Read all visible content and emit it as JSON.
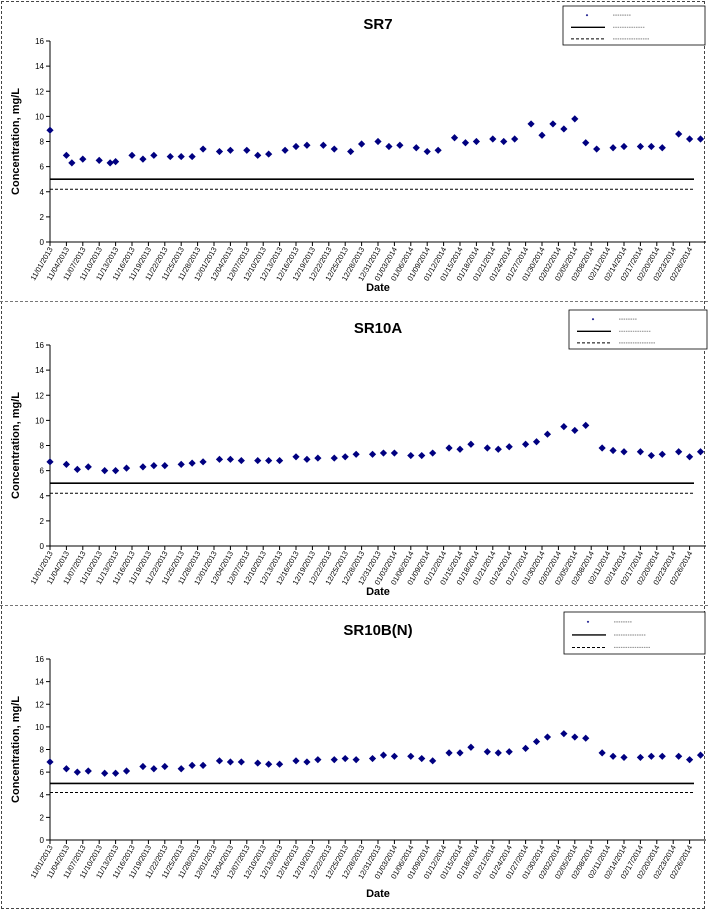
{
  "chart_data": [
    {
      "type": "scatter",
      "title": "SR7",
      "xlabel": "Date",
      "ylabel": "Concentration, mg/L",
      "ylim": [
        0,
        16
      ],
      "yticks": [
        0,
        2,
        4,
        6,
        8,
        10,
        12,
        14,
        16
      ],
      "xticklabels": [
        "11/01/2013",
        "11/04/2013",
        "11/07/2013",
        "11/10/2013",
        "11/13/2013",
        "11/16/2013",
        "11/19/2013",
        "11/22/2013",
        "11/25/2013",
        "11/28/2013",
        "12/01/2013",
        "12/04/2013",
        "12/07/2013",
        "12/10/2013",
        "12/13/2013",
        "12/16/2013",
        "12/19/2013",
        "12/22/2013",
        "12/25/2013",
        "12/28/2013",
        "12/31/2013",
        "01/03/2014",
        "01/06/2014",
        "01/09/2014",
        "01/12/2014",
        "01/15/2014",
        "01/18/2014",
        "01/21/2014",
        "01/24/2014",
        "01/27/2014",
        "01/30/2014",
        "02/02/2014",
        "02/05/2014",
        "02/08/2014",
        "02/11/2014",
        "02/14/2014",
        "02/17/2014",
        "02/20/2014",
        "02/23/2014",
        "02/26/2014"
      ],
      "dates": [
        "11/01/2013",
        "11/04/2013",
        "11/05/2013",
        "11/07/2013",
        "11/10/2013",
        "11/12/2013",
        "11/13/2013",
        "11/16/2013",
        "11/18/2013",
        "11/20/2013",
        "11/23/2013",
        "11/25/2013",
        "11/27/2013",
        "11/29/2013",
        "12/02/2013",
        "12/04/2013",
        "12/07/2013",
        "12/09/2013",
        "12/11/2013",
        "12/14/2013",
        "12/16/2013",
        "12/18/2013",
        "12/21/2013",
        "12/23/2013",
        "12/26/2013",
        "12/28/2013",
        "12/31/2013",
        "01/02/2014",
        "01/04/2014",
        "01/07/2014",
        "01/09/2014",
        "01/11/2014",
        "01/14/2014",
        "01/16/2014",
        "01/18/2014",
        "01/21/2014",
        "01/23/2014",
        "01/25/2014",
        "01/28/2014",
        "01/30/2014",
        "02/01/2014",
        "02/03/2014",
        "02/05/2014",
        "02/07/2014",
        "02/09/2014",
        "02/12/2014",
        "02/14/2014",
        "02/17/2014",
        "02/19/2014",
        "02/21/2014",
        "02/24/2014",
        "02/26/2014",
        "02/28/2014"
      ],
      "values": [
        8.9,
        6.9,
        6.3,
        6.6,
        6.5,
        6.3,
        6.4,
        6.9,
        6.6,
        6.9,
        6.8,
        6.8,
        6.8,
        7.4,
        7.2,
        7.3,
        7.3,
        6.9,
        7.0,
        7.3,
        7.6,
        7.7,
        7.7,
        7.4,
        7.2,
        7.8,
        8.0,
        7.6,
        7.7,
        7.5,
        7.2,
        7.3,
        8.3,
        7.9,
        8.0,
        8.2,
        8.0,
        8.2,
        9.4,
        8.5,
        9.4,
        9.0,
        9.8,
        7.9,
        7.4,
        7.5,
        7.6,
        7.6,
        7.6,
        7.5,
        8.6,
        8.2,
        8.2
      ],
      "reference_lines": [
        {
          "value": 5.0,
          "style": "solid"
        },
        {
          "value": 4.2,
          "style": "dashed"
        }
      ],
      "grid": false,
      "legend_position": "top-right"
    },
    {
      "type": "scatter",
      "title": "SR10A",
      "xlabel": "Date",
      "ylabel": "Concentration, mg/L",
      "ylim": [
        0,
        16
      ],
      "yticks": [
        0,
        2,
        4,
        6,
        8,
        10,
        12,
        14,
        16
      ],
      "xticklabels": [
        "11/01/2013",
        "11/04/2013",
        "11/07/2013",
        "11/10/2013",
        "11/13/2013",
        "11/16/2013",
        "11/19/2013",
        "11/22/2013",
        "11/25/2013",
        "11/28/2013",
        "12/01/2013",
        "12/04/2013",
        "12/07/2013",
        "12/10/2013",
        "12/13/2013",
        "12/16/2013",
        "12/19/2013",
        "12/22/2013",
        "12/25/2013",
        "12/28/2013",
        "12/31/2013",
        "01/03/2014",
        "01/06/2014",
        "01/09/2014",
        "01/12/2014",
        "01/15/2014",
        "01/18/2014",
        "01/21/2014",
        "01/24/2014",
        "01/27/2014",
        "01/30/2014",
        "02/02/2014",
        "02/05/2014",
        "02/08/2014",
        "02/11/2014",
        "02/14/2014",
        "02/17/2014",
        "02/20/2014",
        "02/23/2014",
        "02/26/2014"
      ],
      "dates": [
        "11/01/2013",
        "11/04/2013",
        "11/06/2013",
        "11/08/2013",
        "11/11/2013",
        "11/13/2013",
        "11/15/2013",
        "11/18/2013",
        "11/20/2013",
        "11/22/2013",
        "11/25/2013",
        "11/27/2013",
        "11/29/2013",
        "12/02/2013",
        "12/04/2013",
        "12/06/2013",
        "12/09/2013",
        "12/11/2013",
        "12/13/2013",
        "12/16/2013",
        "12/18/2013",
        "12/20/2013",
        "12/23/2013",
        "12/25/2013",
        "12/27/2013",
        "12/30/2013",
        "01/01/2014",
        "01/03/2014",
        "01/06/2014",
        "01/08/2014",
        "01/10/2014",
        "01/13/2014",
        "01/15/2014",
        "01/17/2014",
        "01/20/2014",
        "01/22/2014",
        "01/24/2014",
        "01/27/2014",
        "01/29/2014",
        "01/31/2014",
        "02/03/2014",
        "02/05/2014",
        "02/07/2014",
        "02/10/2014",
        "02/12/2014",
        "02/14/2014",
        "02/17/2014",
        "02/19/2014",
        "02/21/2014",
        "02/24/2014",
        "02/26/2014",
        "02/28/2014"
      ],
      "values": [
        6.7,
        6.5,
        6.1,
        6.3,
        6.0,
        6.0,
        6.2,
        6.3,
        6.4,
        6.4,
        6.5,
        6.6,
        6.7,
        6.9,
        6.9,
        6.8,
        6.8,
        6.8,
        6.8,
        7.1,
        6.9,
        7.0,
        7.0,
        7.1,
        7.3,
        7.3,
        7.4,
        7.4,
        7.2,
        7.2,
        7.4,
        7.8,
        7.7,
        8.1,
        7.8,
        7.7,
        7.9,
        8.1,
        8.3,
        8.9,
        9.5,
        9.2,
        9.6,
        7.8,
        7.6,
        7.5,
        7.5,
        7.2,
        7.3,
        7.5,
        7.1,
        7.5
      ],
      "reference_lines": [
        {
          "value": 5.0,
          "style": "solid"
        },
        {
          "value": 4.2,
          "style": "dashed"
        }
      ],
      "grid": false,
      "legend_position": "top-right"
    },
    {
      "type": "scatter",
      "title": "SR10B(N)",
      "xlabel": "Date",
      "ylabel": "Concentration, mg/L",
      "ylim": [
        0,
        16
      ],
      "yticks": [
        0,
        2,
        4,
        6,
        8,
        10,
        12,
        14,
        16
      ],
      "xticklabels": [
        "11/01/2013",
        "11/04/2013",
        "11/07/2013",
        "11/10/2013",
        "11/13/2013",
        "11/16/2013",
        "11/19/2013",
        "11/22/2013",
        "11/25/2013",
        "11/28/2013",
        "12/01/2013",
        "12/04/2013",
        "12/07/2013",
        "12/10/2013",
        "12/13/2013",
        "12/16/2013",
        "12/19/2013",
        "12/22/2013",
        "12/25/2013",
        "12/28/2013",
        "12/31/2013",
        "01/03/2014",
        "01/06/2014",
        "01/09/2014",
        "01/12/2014",
        "01/15/2014",
        "01/18/2014",
        "01/21/2014",
        "01/24/2014",
        "01/27/2014",
        "01/30/2014",
        "02/02/2014",
        "02/05/2014",
        "02/08/2014",
        "02/11/2014",
        "02/14/2014",
        "02/17/2014",
        "02/20/2014",
        "02/23/2014",
        "02/26/2014"
      ],
      "dates": [
        "11/01/2013",
        "11/04/2013",
        "11/06/2013",
        "11/08/2013",
        "11/11/2013",
        "11/13/2013",
        "11/15/2013",
        "11/18/2013",
        "11/20/2013",
        "11/22/2013",
        "11/25/2013",
        "11/27/2013",
        "11/29/2013",
        "12/02/2013",
        "12/04/2013",
        "12/06/2013",
        "12/09/2013",
        "12/11/2013",
        "12/13/2013",
        "12/16/2013",
        "12/18/2013",
        "12/20/2013",
        "12/23/2013",
        "12/25/2013",
        "12/27/2013",
        "12/30/2013",
        "01/01/2014",
        "01/03/2014",
        "01/06/2014",
        "01/08/2014",
        "01/10/2014",
        "01/13/2014",
        "01/15/2014",
        "01/17/2014",
        "01/20/2014",
        "01/22/2014",
        "01/24/2014",
        "01/27/2014",
        "01/29/2014",
        "01/31/2014",
        "02/03/2014",
        "02/05/2014",
        "02/07/2014",
        "02/10/2014",
        "02/12/2014",
        "02/14/2014",
        "02/17/2014",
        "02/19/2014",
        "02/21/2014",
        "02/24/2014",
        "02/26/2014",
        "02/28/2014"
      ],
      "values": [
        6.9,
        6.3,
        6.0,
        6.1,
        5.9,
        5.9,
        6.1,
        6.5,
        6.3,
        6.5,
        6.3,
        6.6,
        6.6,
        7.0,
        6.9,
        6.9,
        6.8,
        6.7,
        6.7,
        7.0,
        6.9,
        7.1,
        7.1,
        7.2,
        7.1,
        7.2,
        7.5,
        7.4,
        7.4,
        7.2,
        7.0,
        7.7,
        7.7,
        8.2,
        7.8,
        7.7,
        7.8,
        8.1,
        8.7,
        9.1,
        9.4,
        9.1,
        9.0,
        7.7,
        7.4,
        7.3,
        7.3,
        7.4,
        7.4,
        7.4,
        7.1,
        7.5
      ],
      "reference_lines": [
        {
          "value": 5.0,
          "style": "solid"
        },
        {
          "value": 4.2,
          "style": "dashed"
        }
      ],
      "grid": false,
      "legend_position": "top-right"
    }
  ],
  "colors": {
    "marker": "#000080",
    "axis": "#000000",
    "reference": "#000000"
  }
}
